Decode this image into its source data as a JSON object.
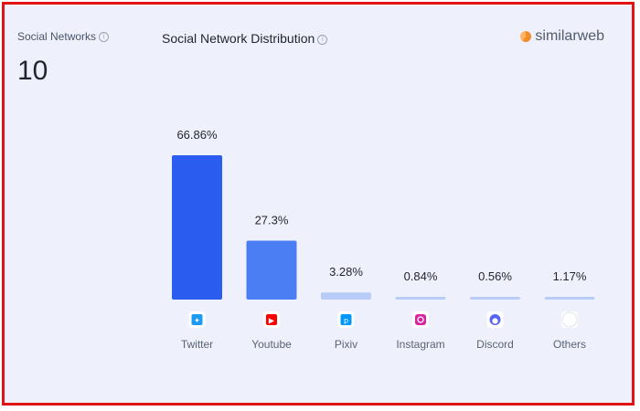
{
  "left_panel": {
    "label": "Social Networks",
    "value": "10"
  },
  "header": {
    "title": "Social Network Distribution",
    "brand": "similarweb"
  },
  "colors": {
    "primary": "#2b5cf0",
    "secondary": "#4a7ef2",
    "light": "#b9cbf7",
    "background": "#eef1fb",
    "border": "#e01414"
  },
  "chart_data": {
    "type": "bar",
    "categories": [
      "Twitter",
      "Youtube",
      "Pixiv",
      "Instagram",
      "Discord",
      "Others"
    ],
    "values": [
      66.86,
      27.3,
      3.28,
      0.84,
      0.56,
      1.17
    ],
    "value_labels": [
      "66.86%",
      "27.3%",
      "3.28%",
      "0.84%",
      "0.56%",
      "1.17%"
    ],
    "icons": [
      "twitter-icon",
      "youtube-icon",
      "pixiv-icon",
      "instagram-icon",
      "discord-icon",
      "others-icon"
    ],
    "title": "Social Network Distribution",
    "xlabel": "",
    "ylabel": "",
    "ylim": [
      0,
      66.86
    ],
    "grid": false
  }
}
